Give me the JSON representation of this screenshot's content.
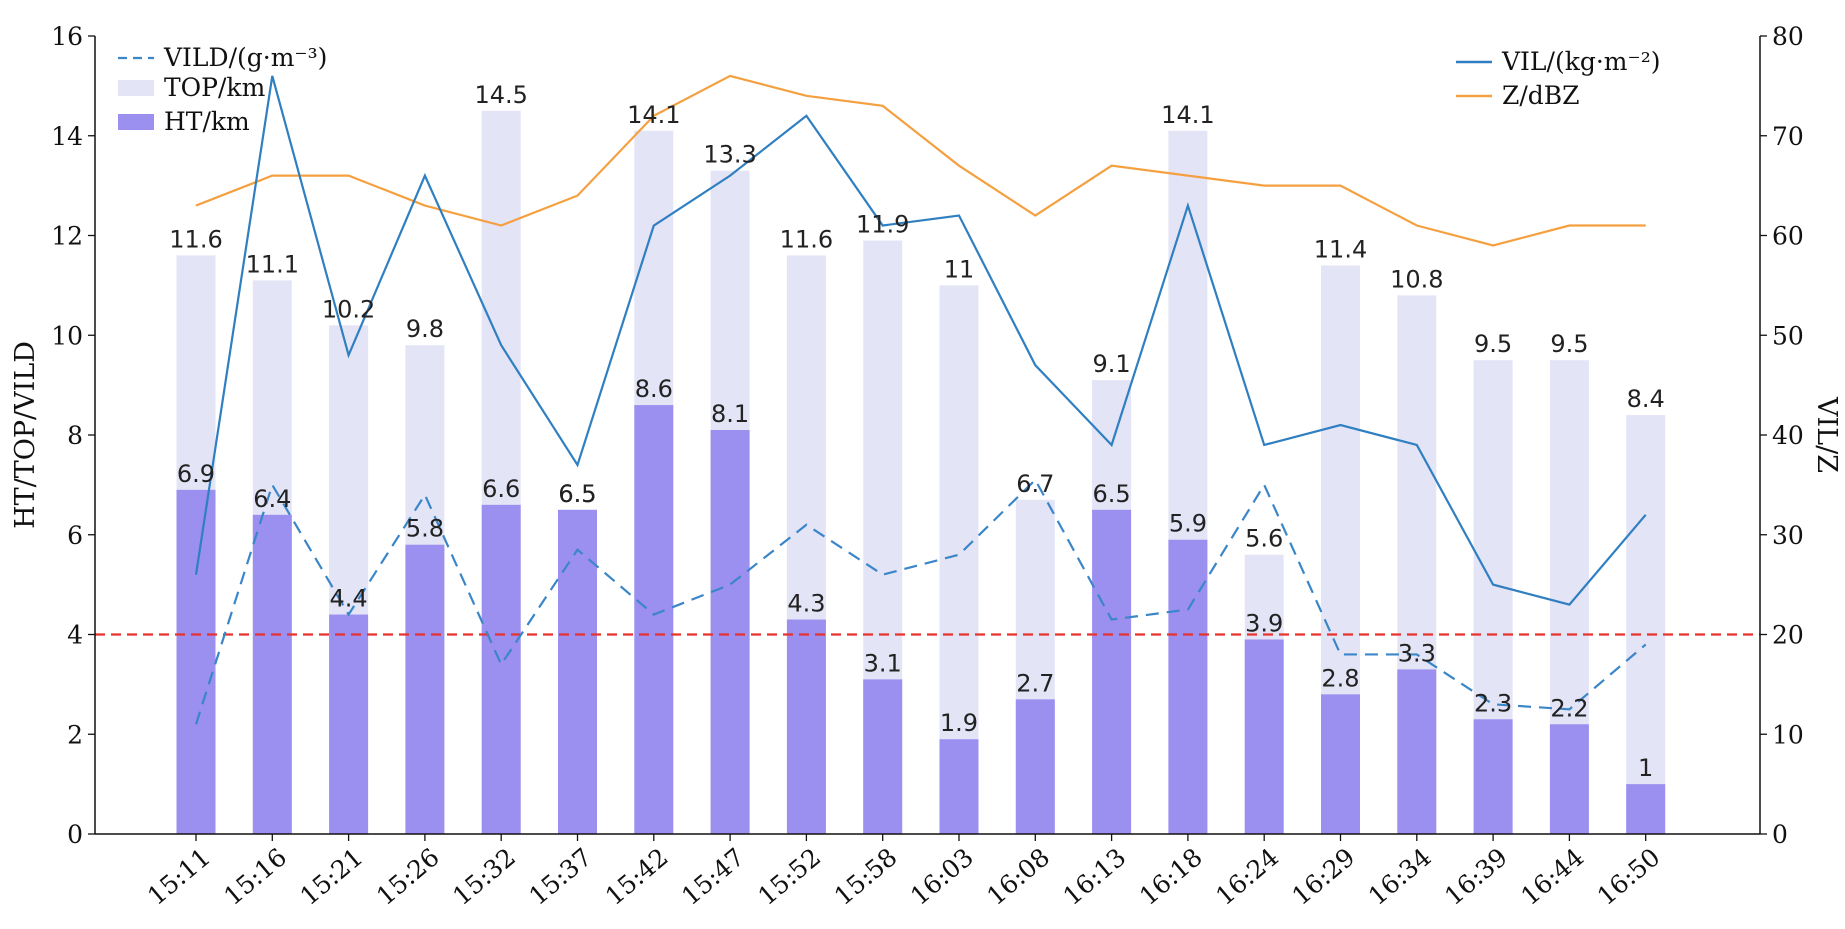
{
  "chart_data": {
    "type": "bar",
    "categories": [
      "15:11",
      "15:16",
      "15:21",
      "15:26",
      "15:32",
      "15:37",
      "15:42",
      "15:47",
      "15:52",
      "15:58",
      "16:03",
      "16:08",
      "16:13",
      "16:18",
      "16:24",
      "16:29",
      "16:34",
      "16:39",
      "16:44",
      "16:50"
    ],
    "series": [
      {
        "name": "TOP/km",
        "type": "bar",
        "axis": "left",
        "color": "#e4e4f7",
        "values": [
          11.6,
          11.1,
          10.2,
          9.8,
          14.5,
          6.5,
          14.1,
          13.3,
          11.6,
          11.9,
          11,
          6.7,
          9.1,
          14.1,
          5.6,
          11.4,
          10.8,
          9.5,
          9.5,
          8.4
        ]
      },
      {
        "name": "HT/km",
        "type": "bar",
        "axis": "left",
        "color": "#9b8ff0",
        "values": [
          6.9,
          6.4,
          4.4,
          5.8,
          6.6,
          6.5,
          8.6,
          8.1,
          4.3,
          3.1,
          1.9,
          2.7,
          6.5,
          5.9,
          3.9,
          2.8,
          3.3,
          2.3,
          2.2,
          1
        ]
      },
      {
        "name": "VILD/(g·m⁻³)",
        "type": "line",
        "style": "dashed",
        "axis": "left",
        "color": "#3a86c8",
        "values": [
          2.2,
          7.0,
          4.4,
          6.8,
          3.4,
          5.7,
          4.4,
          5.0,
          6.2,
          5.2,
          5.6,
          7.1,
          4.3,
          4.5,
          7.0,
          3.6,
          3.6,
          2.6,
          2.5,
          3.8
        ]
      },
      {
        "name": "VIL/(kg·m⁻²)",
        "type": "line",
        "axis": "right",
        "color": "#2f7fc1",
        "values": [
          26,
          76,
          48,
          66,
          49,
          37,
          61,
          66,
          72,
          61,
          62,
          47,
          39,
          63,
          39,
          41,
          39,
          25,
          23,
          32
        ]
      },
      {
        "name": "Z/dBZ",
        "type": "line",
        "axis": "right",
        "color": "#f5a040",
        "values": [
          63,
          66,
          66,
          63,
          61,
          64,
          72,
          76,
          74,
          73,
          67,
          62,
          67,
          66,
          65,
          65,
          61,
          59,
          61,
          61
        ]
      }
    ],
    "bar_labels": {
      "top": [
        "11.6",
        "11.1",
        "10.2",
        "9.8",
        "14.5",
        "6.5",
        "14.1",
        "13.3",
        "11.6",
        "11.9",
        "11",
        "6.7",
        "9.1",
        "14.1",
        "5.6",
        "11.4",
        "10.8",
        "9.5",
        "9.5",
        "8.4"
      ],
      "ht": [
        "6.9",
        "6.4",
        "4.4",
        "5.8",
        "6.6",
        "6.5",
        "8.6",
        "8.1",
        "4.3",
        "3.1",
        "1.9",
        "2.7",
        "6.5",
        "5.9",
        "3.9",
        "2.8",
        "3.3",
        "2.3",
        "2.2",
        "1"
      ]
    },
    "reference_line": {
      "value": 4,
      "axis": "left",
      "color": "#e8322c",
      "style": "dashed"
    },
    "ylabel": "HT/TOP/VILD",
    "y2label": "VIL/Z",
    "ylim": [
      0,
      16
    ],
    "y2lim": [
      0,
      80
    ],
    "yticks": [
      "0",
      "2",
      "4",
      "6",
      "8",
      "10",
      "12",
      "14",
      "16"
    ],
    "y2ticks": [
      "0",
      "10",
      "20",
      "30",
      "40",
      "50",
      "60",
      "70",
      "80"
    ],
    "legend_left": [
      "VILD/(g·m⁻³)",
      "TOP/km",
      "HT/km"
    ],
    "legend_right": [
      "VIL/(kg·m⁻²)",
      "Z/dBZ"
    ],
    "legend_placement": "top-left and top-right",
    "grid": false
  }
}
